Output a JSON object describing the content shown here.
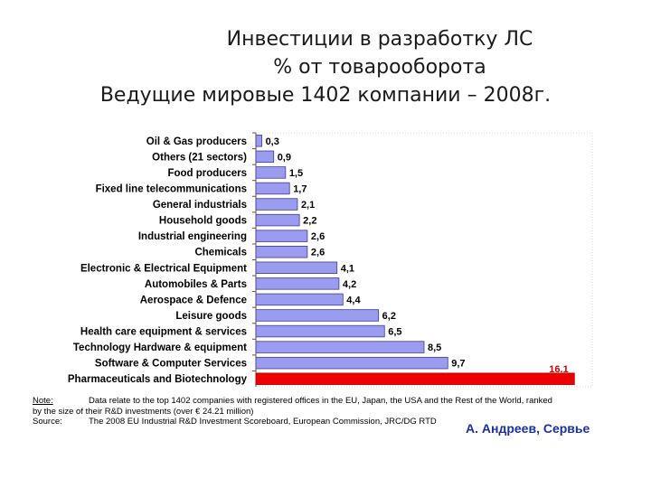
{
  "title": {
    "line1": "Инвестиции в разработку ЛС",
    "line2": "% от товарооборота",
    "line3": "Ведущие мировые 1402 компании – 2008г."
  },
  "chart_data": {
    "type": "bar",
    "orientation": "horizontal",
    "categories": [
      "Oil & Gas producers",
      "Others (21 sectors)",
      "Food producers",
      "Fixed line telecommunications",
      "General industrials",
      "Household goods",
      "Industrial engineering",
      "Chemicals",
      "Electronic & Electrical Equipment",
      "Automobiles & Parts",
      "Aerospace & Defence",
      "Leisure goods",
      "Health care equipment & services",
      "Technology Hardware & equipment",
      "Software & Computer Services",
      "Pharmaceuticals and Biotechnology"
    ],
    "values": [
      0.3,
      0.9,
      1.5,
      1.7,
      2.1,
      2.2,
      2.6,
      2.6,
      4.1,
      4.2,
      4.4,
      6.2,
      6.5,
      8.5,
      9.7,
      16.1
    ],
    "value_labels": [
      "0,3",
      "0,9",
      "1,5",
      "1,7",
      "2,1",
      "2,2",
      "2,6",
      "2,6",
      "4,1",
      "4,2",
      "4,4",
      "6,2",
      "6,5",
      "8,5",
      "9,7",
      "16.1"
    ],
    "colors": {
      "default": "#9b9bef",
      "highlight": "#ee0000",
      "highlight_label": "#cc0000"
    },
    "highlight_index": 15,
    "xlim": [
      0,
      17
    ]
  },
  "notes": {
    "note_key": "Note:",
    "note_line1": "Data relate to the top 1402 companies with registered offices in the EU, Japan, the USA and the Rest of the  World, ranked",
    "note_line2": "by the size of their R&D investments (over € 24.21 million)",
    "source_key": "Source:",
    "source_text": "The 2008 EU Industrial R&D Investment Scoreboard, European Commission, JRC/DG RTD"
  },
  "author": "А. Андреев, Сервье"
}
